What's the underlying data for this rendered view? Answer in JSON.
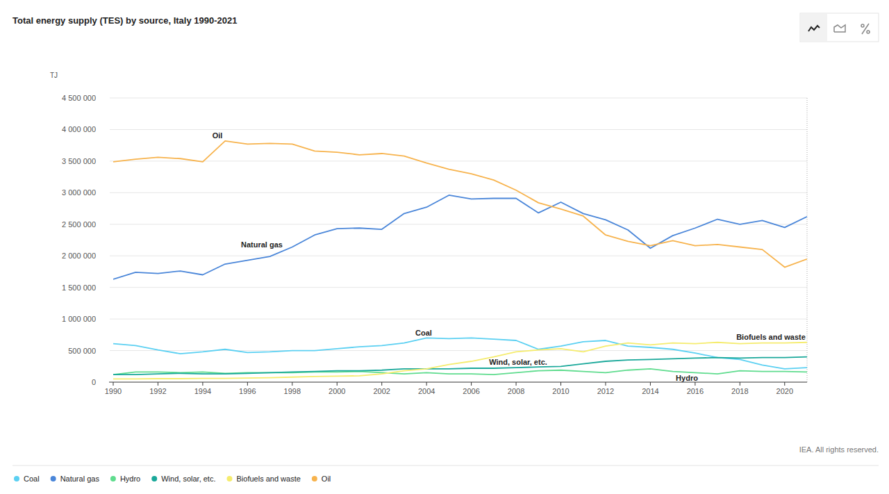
{
  "chart_data": {
    "type": "line",
    "title": "Total energy supply (TES) by source, Italy 1990-2021",
    "y_label": "TJ",
    "source": "IEA. All rights reserved.",
    "x": [
      1990,
      1991,
      1992,
      1993,
      1994,
      1995,
      1996,
      1997,
      1998,
      1999,
      2000,
      2001,
      2002,
      2003,
      2004,
      2005,
      2006,
      2007,
      2008,
      2009,
      2010,
      2011,
      2012,
      2013,
      2014,
      2015,
      2016,
      2017,
      2018,
      2019,
      2020,
      2021
    ],
    "xlim": [
      1990,
      2021
    ],
    "xticks": [
      1990,
      1992,
      1994,
      1996,
      1998,
      2000,
      2002,
      2004,
      2006,
      2008,
      2010,
      2012,
      2014,
      2016,
      2018,
      2020
    ],
    "ylim": [
      0,
      4500000
    ],
    "yticks": [
      0,
      {
        "value": 500000,
        "label": "500 000"
      },
      {
        "value": 1000000,
        "label": "1 000 000"
      },
      {
        "value": 1500000,
        "label": "1 500 000"
      },
      {
        "value": 2000000,
        "label": "2 000 000"
      },
      {
        "value": 2500000,
        "label": "2 500 000"
      },
      {
        "value": 3000000,
        "label": "3 000 000"
      },
      {
        "value": 3500000,
        "label": "3 500 000"
      },
      {
        "value": 4000000,
        "label": "4 000 000"
      },
      {
        "value": 4500000,
        "label": "4 500 000"
      }
    ],
    "grid": true,
    "legend": "bottom",
    "series": [
      {
        "name": "Coal",
        "color": "#5bd0f2",
        "values": [
          610000,
          580000,
          510000,
          450000,
          480000,
          520000,
          470000,
          480000,
          500000,
          500000,
          530000,
          560000,
          580000,
          620000,
          700000,
          690000,
          700000,
          680000,
          660000,
          520000,
          570000,
          640000,
          660000,
          570000,
          550000,
          520000,
          460000,
          390000,
          360000,
          270000,
          210000,
          230000
        ]
      },
      {
        "name": "Natural gas",
        "color": "#4a86d9",
        "values": [
          1630000,
          1740000,
          1720000,
          1760000,
          1700000,
          1870000,
          1930000,
          1990000,
          2140000,
          2330000,
          2430000,
          2440000,
          2420000,
          2670000,
          2770000,
          2960000,
          2900000,
          2910000,
          2910000,
          2680000,
          2850000,
          2670000,
          2570000,
          2410000,
          2120000,
          2320000,
          2440000,
          2580000,
          2500000,
          2560000,
          2450000,
          2620000
        ]
      },
      {
        "name": "Hydro",
        "color": "#5fdc8e",
        "values": [
          120000,
          160000,
          160000,
          150000,
          160000,
          140000,
          150000,
          150000,
          150000,
          160000,
          160000,
          170000,
          150000,
          130000,
          150000,
          130000,
          130000,
          120000,
          150000,
          180000,
          190000,
          170000,
          150000,
          190000,
          210000,
          170000,
          150000,
          130000,
          180000,
          170000,
          170000,
          160000
        ]
      },
      {
        "name": "Wind, solar, etc.",
        "color": "#1aa89a",
        "values": [
          120000,
          120000,
          130000,
          140000,
          130000,
          130000,
          140000,
          150000,
          160000,
          170000,
          180000,
          180000,
          190000,
          210000,
          210000,
          210000,
          220000,
          220000,
          230000,
          240000,
          250000,
          290000,
          330000,
          350000,
          360000,
          370000,
          380000,
          390000,
          380000,
          390000,
          390000,
          400000
        ]
      },
      {
        "name": "Biofuels and waste",
        "color": "#f5ec6e",
        "values": [
          50000,
          50000,
          55000,
          55000,
          60000,
          60000,
          65000,
          70000,
          80000,
          90000,
          95000,
          100000,
          130000,
          180000,
          210000,
          280000,
          330000,
          400000,
          480000,
          510000,
          530000,
          480000,
          570000,
          620000,
          590000,
          620000,
          610000,
          630000,
          610000,
          620000,
          620000,
          630000
        ]
      },
      {
        "name": "Oil",
        "color": "#f7b34d",
        "values": [
          3490000,
          3530000,
          3560000,
          3540000,
          3490000,
          3820000,
          3770000,
          3780000,
          3770000,
          3660000,
          3640000,
          3600000,
          3620000,
          3580000,
          3470000,
          3370000,
          3300000,
          3200000,
          3040000,
          2840000,
          2740000,
          2630000,
          2330000,
          2230000,
          2160000,
          2240000,
          2160000,
          2180000,
          2140000,
          2100000,
          1820000,
          1950000
        ]
      }
    ]
  }
}
